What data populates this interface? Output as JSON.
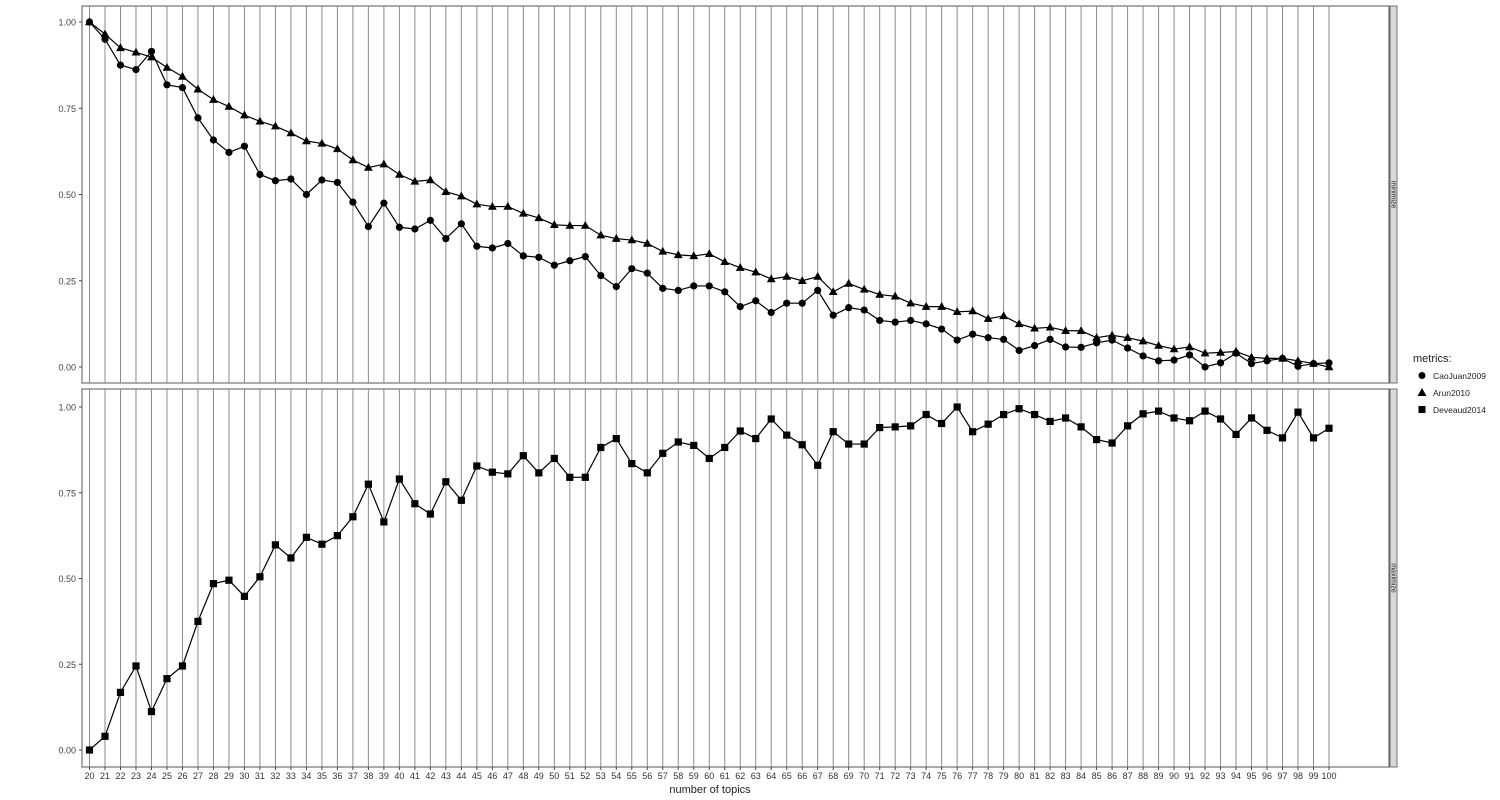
{
  "chart_data": {
    "type": "line",
    "xlabel": "number of topics",
    "x": [
      20,
      21,
      22,
      23,
      24,
      25,
      26,
      27,
      28,
      29,
      30,
      31,
      32,
      33,
      34,
      35,
      36,
      37,
      38,
      39,
      40,
      41,
      42,
      43,
      44,
      45,
      46,
      47,
      48,
      49,
      50,
      51,
      52,
      53,
      54,
      55,
      56,
      57,
      58,
      59,
      60,
      61,
      62,
      63,
      64,
      65,
      66,
      67,
      68,
      69,
      70,
      71,
      72,
      73,
      74,
      75,
      76,
      77,
      78,
      79,
      80,
      81,
      82,
      83,
      84,
      85,
      86,
      87,
      88,
      89,
      90,
      91,
      92,
      93,
      94,
      95,
      96,
      97,
      98,
      99,
      100
    ],
    "y_ticks": [
      "0.00",
      "0.25",
      "0.50",
      "0.75",
      "1.00"
    ],
    "ylim": [
      0,
      1
    ],
    "grid": "vertical lines at each x",
    "legend": {
      "title": "metrics:",
      "position": "right",
      "entries": [
        {
          "name": "CaoJuan2009",
          "shape": "circle"
        },
        {
          "name": "Arun2010",
          "shape": "triangle"
        },
        {
          "name": "Deveaud2014",
          "shape": "square"
        }
      ]
    },
    "panels": [
      {
        "strip_label": "minimize",
        "series": [
          {
            "name": "CaoJuan2009",
            "shape": "circle",
            "values": [
              1.0,
              0.95,
              0.875,
              0.862,
              0.915,
              0.818,
              0.81,
              0.722,
              0.658,
              0.622,
              0.64,
              0.558,
              0.54,
              0.545,
              0.5,
              0.542,
              0.535,
              0.478,
              0.407,
              0.475,
              0.405,
              0.4,
              0.425,
              0.372,
              0.415,
              0.35,
              0.345,
              0.358,
              0.322,
              0.318,
              0.295,
              0.308,
              0.32,
              0.265,
              0.233,
              0.285,
              0.272,
              0.228,
              0.222,
              0.235,
              0.235,
              0.218,
              0.175,
              0.192,
              0.158,
              0.185,
              0.185,
              0.222,
              0.15,
              0.172,
              0.165,
              0.135,
              0.13,
              0.135,
              0.125,
              0.11,
              0.078,
              0.095,
              0.085,
              0.08,
              0.048,
              0.062,
              0.08,
              0.058,
              0.057,
              0.07,
              0.078,
              0.055,
              0.032,
              0.018,
              0.02,
              0.035,
              0.0,
              0.012,
              0.04,
              0.01,
              0.018,
              0.025,
              0.002,
              0.01,
              0.012
            ]
          },
          {
            "name": "Arun2010",
            "shape": "triangle",
            "values": [
              1.0,
              0.965,
              0.925,
              0.912,
              0.898,
              0.868,
              0.842,
              0.805,
              0.775,
              0.755,
              0.73,
              0.712,
              0.698,
              0.678,
              0.655,
              0.648,
              0.632,
              0.6,
              0.578,
              0.588,
              0.558,
              0.538,
              0.542,
              0.508,
              0.495,
              0.472,
              0.465,
              0.465,
              0.445,
              0.432,
              0.412,
              0.41,
              0.41,
              0.382,
              0.372,
              0.368,
              0.358,
              0.335,
              0.325,
              0.322,
              0.328,
              0.305,
              0.288,
              0.275,
              0.255,
              0.262,
              0.25,
              0.262,
              0.218,
              0.242,
              0.225,
              0.21,
              0.205,
              0.185,
              0.175,
              0.175,
              0.16,
              0.162,
              0.14,
              0.148,
              0.125,
              0.112,
              0.115,
              0.105,
              0.105,
              0.085,
              0.092,
              0.085,
              0.075,
              0.062,
              0.052,
              0.058,
              0.04,
              0.042,
              0.045,
              0.028,
              0.025,
              0.025,
              0.018,
              0.01,
              0.0
            ]
          }
        ]
      },
      {
        "strip_label": "maximize",
        "series": [
          {
            "name": "Deveaud2014",
            "shape": "square",
            "values": [
              0.0,
              0.04,
              0.168,
              0.245,
              0.112,
              0.208,
              0.245,
              0.375,
              0.485,
              0.495,
              0.448,
              0.505,
              0.598,
              0.56,
              0.62,
              0.6,
              0.625,
              0.68,
              0.775,
              0.665,
              0.79,
              0.718,
              0.688,
              0.782,
              0.728,
              0.828,
              0.81,
              0.805,
              0.858,
              0.808,
              0.85,
              0.795,
              0.795,
              0.882,
              0.908,
              0.835,
              0.808,
              0.865,
              0.898,
              0.888,
              0.85,
              0.882,
              0.93,
              0.908,
              0.965,
              0.918,
              0.89,
              0.83,
              0.928,
              0.892,
              0.892,
              0.94,
              0.942,
              0.945,
              0.978,
              0.952,
              1.0,
              0.928,
              0.95,
              0.978,
              0.995,
              0.978,
              0.958,
              0.968,
              0.942,
              0.905,
              0.895,
              0.945,
              0.98,
              0.988,
              0.968,
              0.96,
              0.988,
              0.965,
              0.92,
              0.968,
              0.932,
              0.91,
              0.985,
              0.91,
              0.938
            ]
          }
        ]
      }
    ]
  }
}
